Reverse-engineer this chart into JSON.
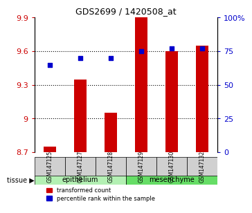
{
  "title": "GDS2699 / 1420508_at",
  "samples": [
    "GSM147125",
    "GSM147127",
    "GSM147128",
    "GSM147129",
    "GSM147130",
    "GSM147132"
  ],
  "red_values": [
    8.75,
    9.35,
    9.05,
    9.9,
    9.6,
    9.65
  ],
  "blue_values": [
    65,
    70,
    70,
    75,
    77,
    77
  ],
  "ylim_left": [
    8.7,
    9.9
  ],
  "ylim_right": [
    0,
    100
  ],
  "yticks_left": [
    8.7,
    9.0,
    9.3,
    9.6,
    9.9
  ],
  "yticks_right": [
    0,
    25,
    50,
    75,
    100
  ],
  "ytick_labels_left": [
    "8.7",
    "9",
    "9.3",
    "9.6",
    "9.9"
  ],
  "ytick_labels_right": [
    "0",
    "25",
    "50",
    "75",
    "100%"
  ],
  "groups": [
    {
      "label": "epithelium",
      "indices": [
        0,
        1,
        2
      ],
      "color": "#b3f0b3"
    },
    {
      "label": "mesenchyme",
      "indices": [
        3,
        4,
        5
      ],
      "color": "#66dd66"
    }
  ],
  "tissue_label": "tissue",
  "red_color": "#cc0000",
  "blue_color": "#0000cc",
  "bar_width": 0.4,
  "grid_color": "#000000",
  "background_color": "#ffffff",
  "tick_bg_color": "#d0d0d0"
}
